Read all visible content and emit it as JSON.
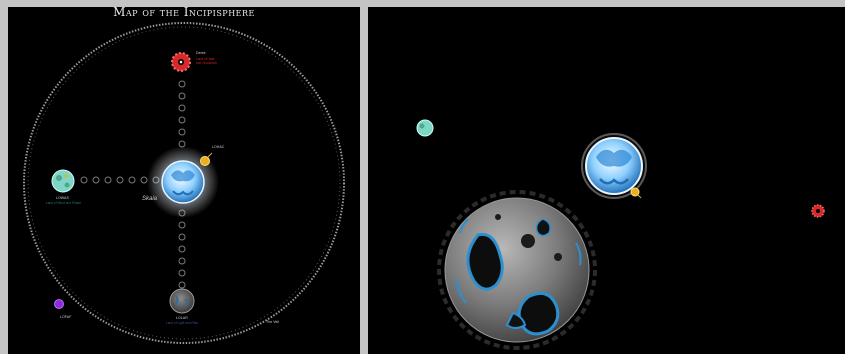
{
  "left_panel": {
    "title": "Map of the Incipisphere",
    "skaia_label": "Skaia",
    "planets": [
      {
        "name": "Derse",
        "label": "Derse"
      },
      {
        "name": "LOHAC",
        "label": "LOHAC"
      },
      {
        "name": "LOWAS",
        "label": "LOWAS"
      },
      {
        "name": "LOLAR",
        "label": "LOLAR"
      },
      {
        "name": "LOFAF",
        "label": "LOFAF"
      }
    ],
    "captions": {
      "lohac_sub_1": "Land of Heat",
      "lohac_sub_2": "and Clockwork",
      "lowas_sub": "Land of Wind and Shade",
      "lolar_sub": "Land of Light and Rain",
      "veil_label": "The Veil"
    }
  },
  "colors": {
    "background": "#000000",
    "frame": "#c4c4c4",
    "red_planet": "#d42a2a",
    "teal_planet": "#7fd6c6",
    "gold_planet": "#e8b020",
    "violet_moon": "#8a2be2",
    "skaia_blue": "#4aa3e0"
  }
}
